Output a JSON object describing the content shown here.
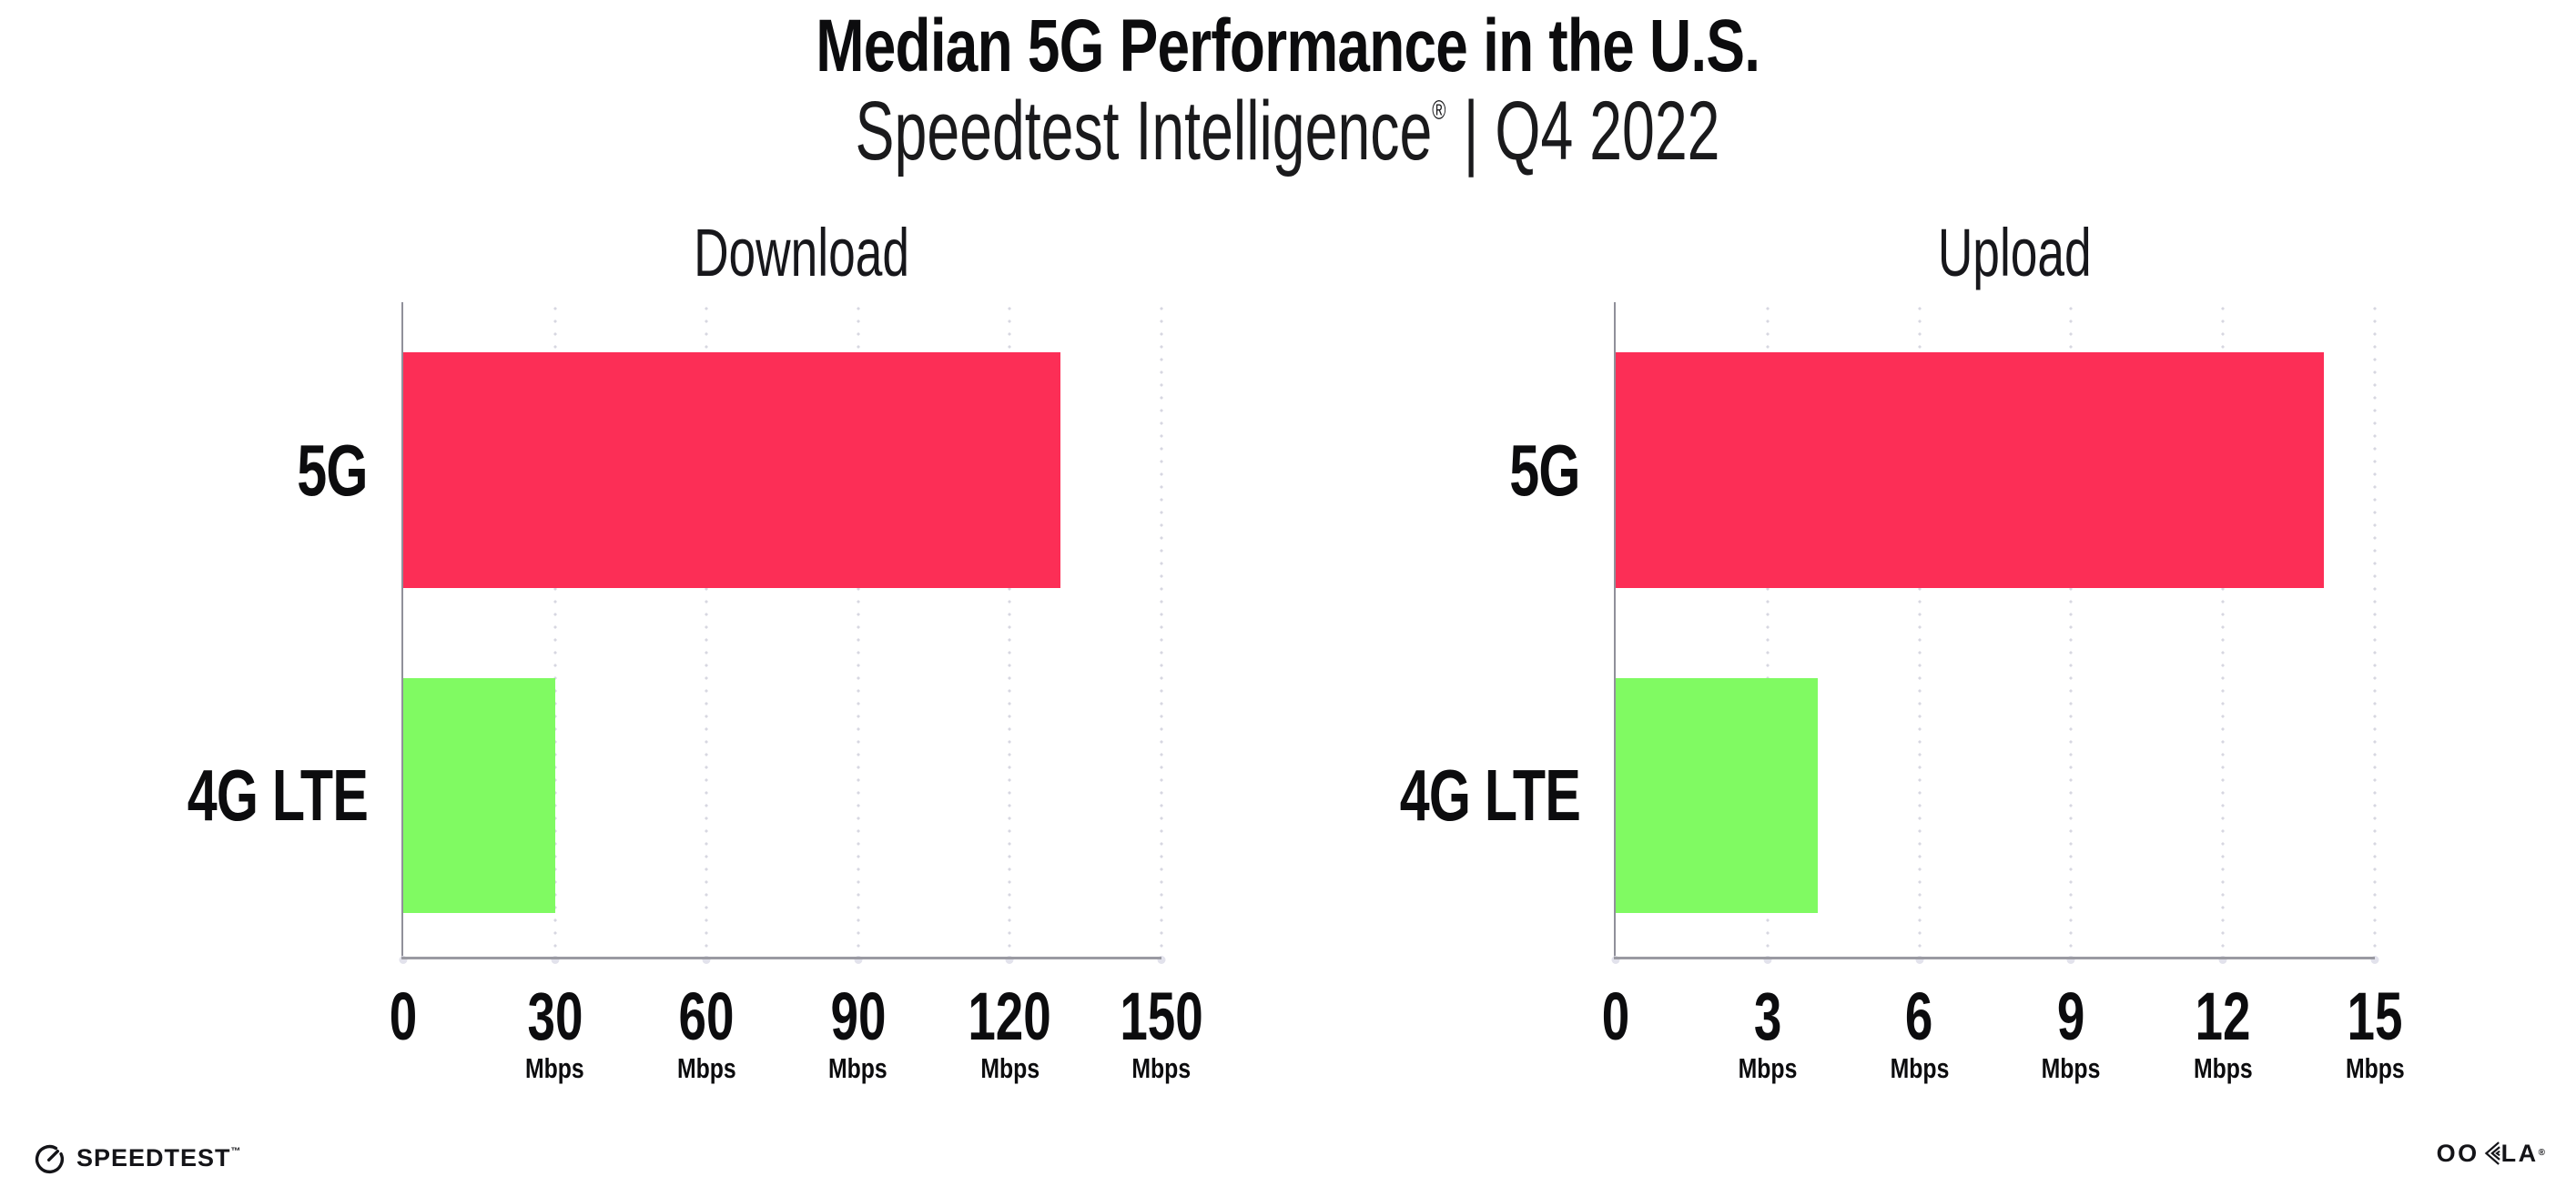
{
  "header": {
    "title": "Median 5G Performance in the U.S.",
    "subtitle_brand": "Speedtest Intelligence",
    "subtitle_mark": "®",
    "subtitle_period": "| Q4 2022"
  },
  "chart_data": [
    {
      "type": "bar",
      "orientation": "horizontal",
      "title": "Download",
      "categories": [
        "5G",
        "4G LTE"
      ],
      "values": [
        130,
        30
      ],
      "unit": "Mbps",
      "xlim": [
        0,
        150
      ],
      "grid": "vertical-dotted",
      "legend": "none",
      "bars": [
        {
          "label": "5G",
          "value": 130,
          "color": "#fc2e56"
        },
        {
          "label": "4G LTE",
          "value": 30,
          "color": "#80fa62"
        }
      ],
      "ticks": [
        {
          "v": 0,
          "label": "0",
          "unit": ""
        },
        {
          "v": 30,
          "label": "30",
          "unit": "Mbps"
        },
        {
          "v": 60,
          "label": "60",
          "unit": "Mbps"
        },
        {
          "v": 90,
          "label": "90",
          "unit": "Mbps"
        },
        {
          "v": 120,
          "label": "120",
          "unit": "Mbps"
        },
        {
          "v": 150,
          "label": "150",
          "unit": "Mbps"
        }
      ]
    },
    {
      "type": "bar",
      "orientation": "horizontal",
      "title": "Upload",
      "categories": [
        "5G",
        "4G LTE"
      ],
      "values": [
        14,
        4
      ],
      "unit": "Mbps",
      "xlim": [
        0,
        15
      ],
      "grid": "vertical-dotted",
      "legend": "none",
      "bars": [
        {
          "label": "5G",
          "value": 14,
          "color": "#fc2e56"
        },
        {
          "label": "4G LTE",
          "value": 4,
          "color": "#80fa62"
        }
      ],
      "ticks": [
        {
          "v": 0,
          "label": "0",
          "unit": ""
        },
        {
          "v": 3,
          "label": "3",
          "unit": "Mbps"
        },
        {
          "v": 6,
          "label": "6",
          "unit": "Mbps"
        },
        {
          "v": 9,
          "label": "9",
          "unit": "Mbps"
        },
        {
          "v": 12,
          "label": "12",
          "unit": "Mbps"
        },
        {
          "v": 15,
          "label": "15",
          "unit": "Mbps"
        }
      ]
    }
  ],
  "colors": {
    "bar_5g": "#fc2e56",
    "bar_4g_lte": "#80fa62",
    "axis_line": "#9a9aa2",
    "spine": "#90909a",
    "grid_dot": "#d7d7e1",
    "text": "#0c0c0e",
    "background": "#ffffff"
  },
  "footer": {
    "speedtest": "SPEEDTEST",
    "speedtest_mark": "™",
    "ookla_left": "OO",
    "ookla_right": "LA",
    "ookla_mark": "®"
  }
}
